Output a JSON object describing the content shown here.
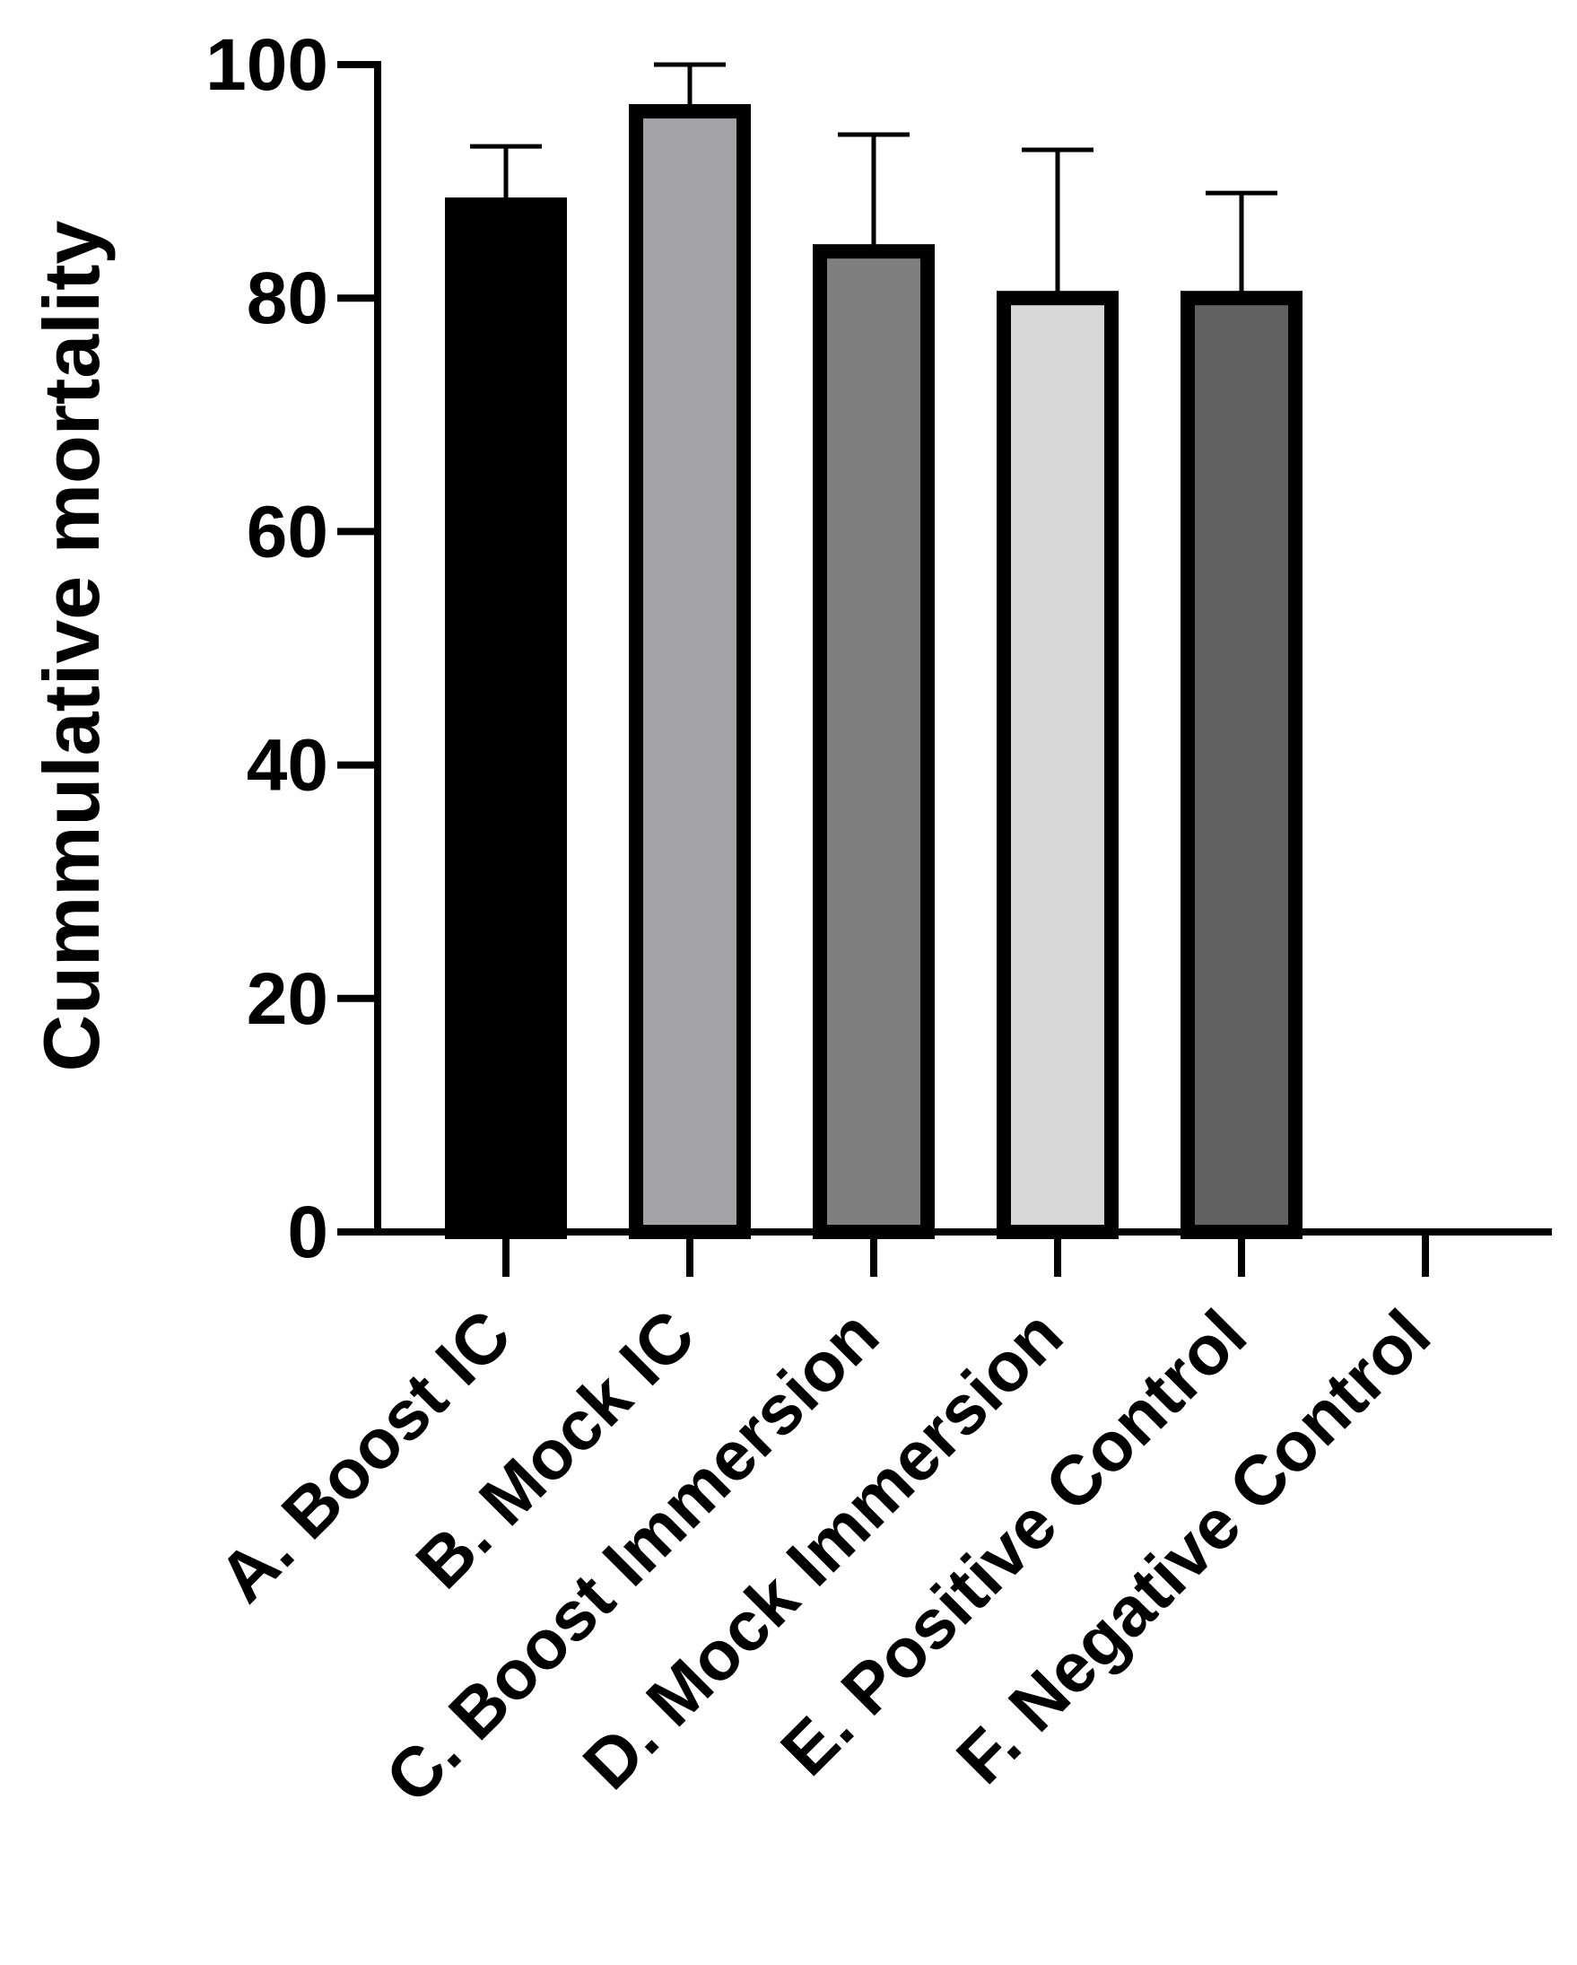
{
  "chart_data": {
    "type": "bar",
    "ylabel": "Cummulative mortality",
    "xlabel": "",
    "ylim": [
      0,
      100
    ],
    "yticks": [
      0,
      20,
      40,
      60,
      80,
      100
    ],
    "categories": [
      "A. Boost IC",
      "B. Mock IC",
      "C. Boost Immersion",
      "D. Mock Immersion",
      "E. Positive Control",
      "F. Negative Control"
    ],
    "values": [
      88,
      96,
      84,
      80,
      80,
      0
    ],
    "error_upper": [
      93,
      100,
      94,
      92.7,
      89,
      0
    ],
    "colors": [
      "#000000",
      "#a3a3a6",
      "#7f7f7f",
      "#d7d7d7",
      "#616161",
      "#ffffff"
    ],
    "grid": false,
    "legend": "none"
  }
}
